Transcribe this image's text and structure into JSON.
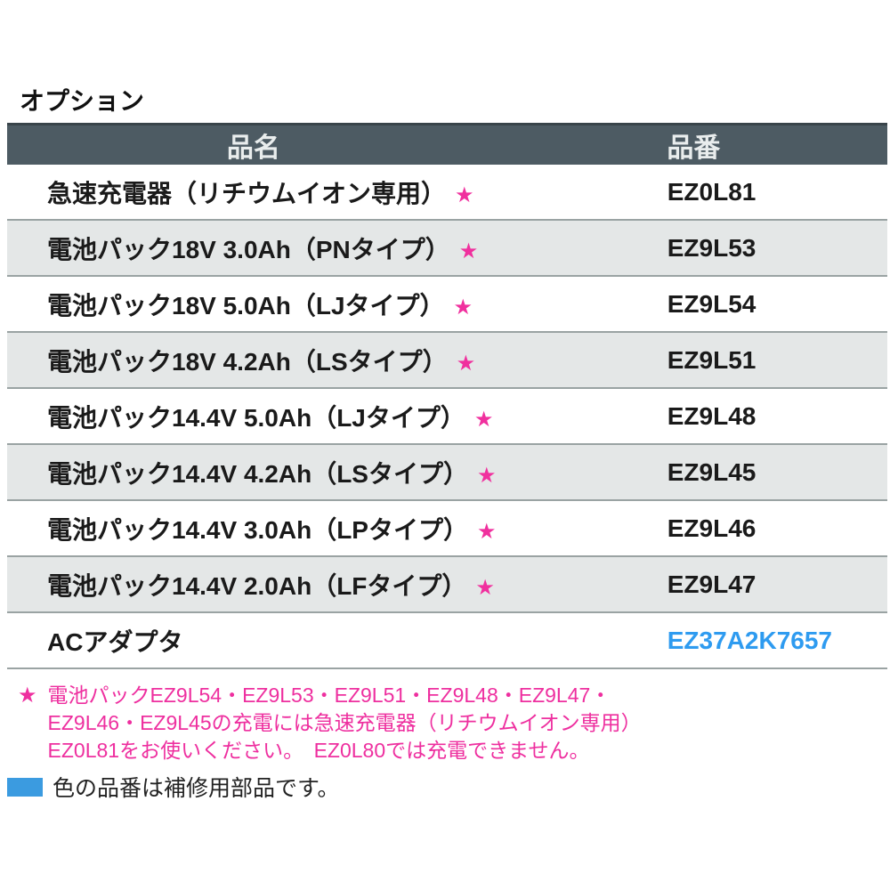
{
  "page": {
    "title": "オプション"
  },
  "table": {
    "headers": {
      "name": "品名",
      "part": "品番"
    },
    "rows": [
      {
        "name": "急速充電器（リチウムイオン専用）",
        "star": "★",
        "part": "EZ0L81"
      },
      {
        "name": "電池パック18V 3.0Ah（PNタイプ）",
        "star": "★",
        "part": "EZ9L53"
      },
      {
        "name": "電池パック18V 5.0Ah（LJタイプ）",
        "star": "★",
        "part": "EZ9L54"
      },
      {
        "name": "電池パック18V 4.2Ah（LSタイプ）",
        "star": "★",
        "part": "EZ9L51"
      },
      {
        "name": "電池パック14.4V 5.0Ah（LJタイプ）",
        "star": "★",
        "part": "EZ9L48"
      },
      {
        "name": "電池パック14.4V 4.2Ah（LSタイプ）",
        "star": "★",
        "part": "EZ9L45"
      },
      {
        "name": "電池パック14.4V 3.0Ah（LPタイプ）",
        "star": "★",
        "part": "EZ9L46"
      },
      {
        "name": "電池パック14.4V 2.0Ah（LFタイプ）",
        "star": "★",
        "part": "EZ9L47"
      },
      {
        "name": "ACアダプタ",
        "star": "",
        "part": "EZ37A2K7657"
      }
    ]
  },
  "footnotes": {
    "star_note": {
      "marker": "★",
      "line1": "電池パックEZ9L54・EZ9L53・EZ9L51・EZ9L48・EZ9L47・",
      "line2": "EZ9L46・EZ9L45の充電には急速充電器（リチウムイオン専用）",
      "line3": "EZ0L81をお使いください。　EZ0L80では充電できません。"
    },
    "blue_note": {
      "swatch_icon": "blue-square-swatch",
      "text": "色の品番は補修用部品です。"
    }
  },
  "colors": {
    "header_bg": "#4d5b63",
    "header_text": "#e9eded",
    "row_alt_bg": "#e4e7e7",
    "row_border": "#9aa3a3",
    "star_magenta": "#f0309e",
    "footnote_magenta": "#ee2f9f",
    "part_blue": "#2e9bf0",
    "swatch_blue": "#3b9be0"
  }
}
